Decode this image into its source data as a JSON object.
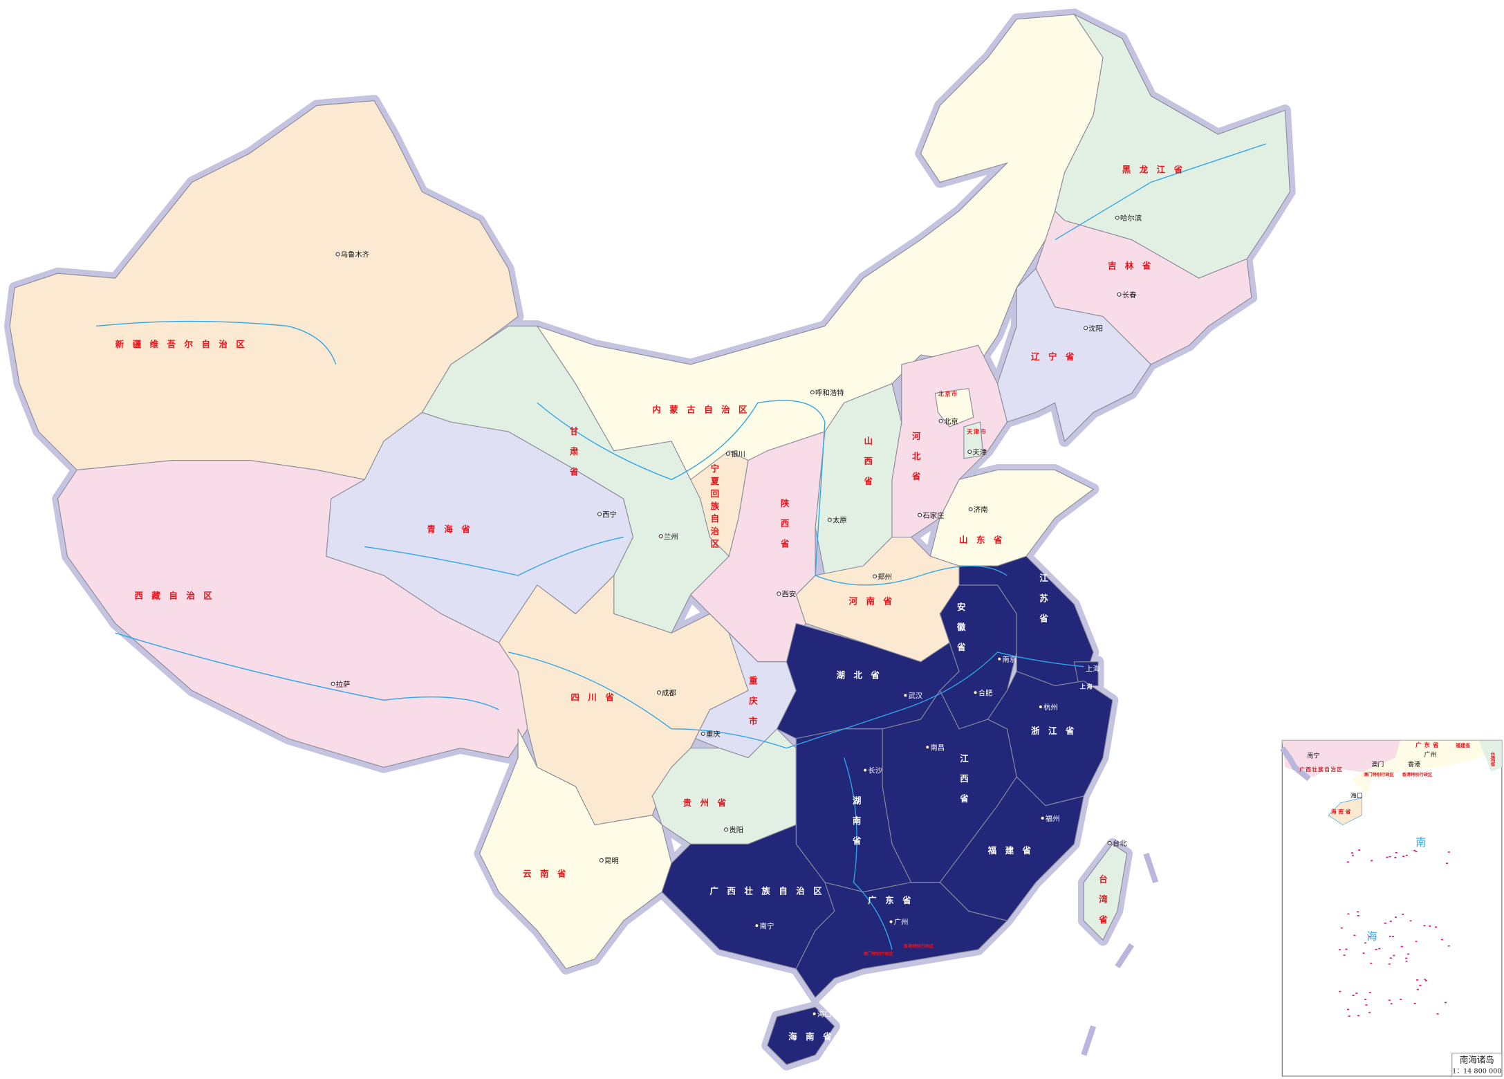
{
  "map": {
    "highlight_color": "#22277a",
    "border_halo_color": "#c4c3e0",
    "river_color": "#2ea6e6",
    "label_color": "#e8141b",
    "provinces": [
      {
        "id": "xinjiang",
        "name": "新疆维吾尔自治区",
        "capital": "乌鲁木齐",
        "color": "#fbe9d2",
        "highlighted": false
      },
      {
        "id": "tibet",
        "name": "西藏自治区",
        "capital": "拉萨",
        "color": "#f8dce8",
        "highlighted": false
      },
      {
        "id": "qinghai",
        "name": "青海省",
        "capital": "西宁",
        "color": "#dfe0f3",
        "highlighted": false
      },
      {
        "id": "gansu",
        "name": "甘肃省",
        "capital": "兰州",
        "color": "#e2efe3",
        "highlighted": false
      },
      {
        "id": "neimenggu",
        "name": "内蒙古自治区",
        "capital": "呼和浩特",
        "color": "#fefce6",
        "highlighted": false
      },
      {
        "id": "heilongjiang",
        "name": "黑龙江省",
        "capital": "哈尔滨",
        "color": "#e2efe3",
        "highlighted": false
      },
      {
        "id": "jilin",
        "name": "吉林省",
        "capital": "长春",
        "color": "#f8dce8",
        "highlighted": false
      },
      {
        "id": "liaoning",
        "name": "辽宁省",
        "capital": "沈阳",
        "color": "#dfe0f3",
        "highlighted": false
      },
      {
        "id": "hebei",
        "name": "河北省",
        "capital": "石家庄",
        "color": "#f8dce8",
        "highlighted": false
      },
      {
        "id": "beijing",
        "name": "北京市",
        "capital": "北京",
        "color": "#fefce6",
        "highlighted": false
      },
      {
        "id": "tianjin",
        "name": "天津市",
        "capital": "天津",
        "color": "#e2efe3",
        "highlighted": false
      },
      {
        "id": "shanxi",
        "name": "山西省",
        "capital": "太原",
        "color": "#e2efe3",
        "highlighted": false
      },
      {
        "id": "shandong",
        "name": "山东省",
        "capital": "济南",
        "color": "#fefce6",
        "highlighted": false
      },
      {
        "id": "henan",
        "name": "河南省",
        "capital": "郑州",
        "color": "#fbe9d2",
        "highlighted": false
      },
      {
        "id": "ningxia",
        "name": "宁夏回族自治区",
        "capital": "银川",
        "color": "#fbe9d2",
        "highlighted": false
      },
      {
        "id": "shaanxi",
        "name": "陕西省",
        "capital": "西安",
        "color": "#f8dce8",
        "highlighted": false
      },
      {
        "id": "sichuan",
        "name": "四川省",
        "capital": "成都",
        "color": "#fbe9d2",
        "highlighted": false
      },
      {
        "id": "chongqing",
        "name": "重庆市",
        "capital": "重庆",
        "color": "#dfe0f3",
        "highlighted": false
      },
      {
        "id": "guizhou",
        "name": "贵州省",
        "capital": "贵阳",
        "color": "#e2efe3",
        "highlighted": false
      },
      {
        "id": "yunnan",
        "name": "云南省",
        "capital": "昆明",
        "color": "#fefce6",
        "highlighted": false
      },
      {
        "id": "hubei",
        "name": "湖北省",
        "capital": "武汉",
        "color": "#22277a",
        "highlighted": true
      },
      {
        "id": "anhui",
        "name": "安徽省",
        "capital": "合肥",
        "color": "#22277a",
        "highlighted": true
      },
      {
        "id": "jiangsu",
        "name": "江苏省",
        "capital": "南京",
        "color": "#22277a",
        "highlighted": true
      },
      {
        "id": "shanghai",
        "name": "上海",
        "capital": "上海",
        "color": "#22277a",
        "highlighted": true
      },
      {
        "id": "zhejiang",
        "name": "浙江省",
        "capital": "杭州",
        "color": "#22277a",
        "highlighted": true
      },
      {
        "id": "jiangxi",
        "name": "江西省",
        "capital": "南昌",
        "color": "#22277a",
        "highlighted": true
      },
      {
        "id": "hunan",
        "name": "湖南省",
        "capital": "长沙",
        "color": "#22277a",
        "highlighted": true
      },
      {
        "id": "fujian",
        "name": "福建省",
        "capital": "福州",
        "color": "#22277a",
        "highlighted": true
      },
      {
        "id": "guangdong",
        "name": "广东省",
        "capital": "广州",
        "color": "#22277a",
        "highlighted": true
      },
      {
        "id": "guangxi",
        "name": "广西壮族自治区",
        "capital": "南宁",
        "color": "#22277a",
        "highlighted": true
      },
      {
        "id": "hainan",
        "name": "海南省",
        "capital": "海口",
        "color": "#22277a",
        "highlighted": true
      },
      {
        "id": "taiwan",
        "name": "台湾省",
        "capital": "台北",
        "color": "#e2efe3",
        "highlighted": false
      }
    ],
    "sar": {
      "hongkong": "香港特别行政区",
      "macau": "澳门特别行政区",
      "hongkong_city": "香港",
      "macau_city": "澳门"
    }
  },
  "inset": {
    "title": "南海诸岛",
    "scale": "1：14 800 000",
    "sea_label_1": "南",
    "sea_label_2": "海",
    "labels": {
      "guangdong": "广东省",
      "guangzhou": "广州",
      "guangxi": "广西壮族自治区",
      "nanning": "南宁",
      "macau": "澳门",
      "hongkong": "香港",
      "macau_sar": "澳门特别行政区",
      "hongkong_sar": "香港特别行政区",
      "haikou": "海口",
      "hainan": "海南省",
      "fujian": "福建省",
      "taiwan": "台湾省"
    }
  }
}
